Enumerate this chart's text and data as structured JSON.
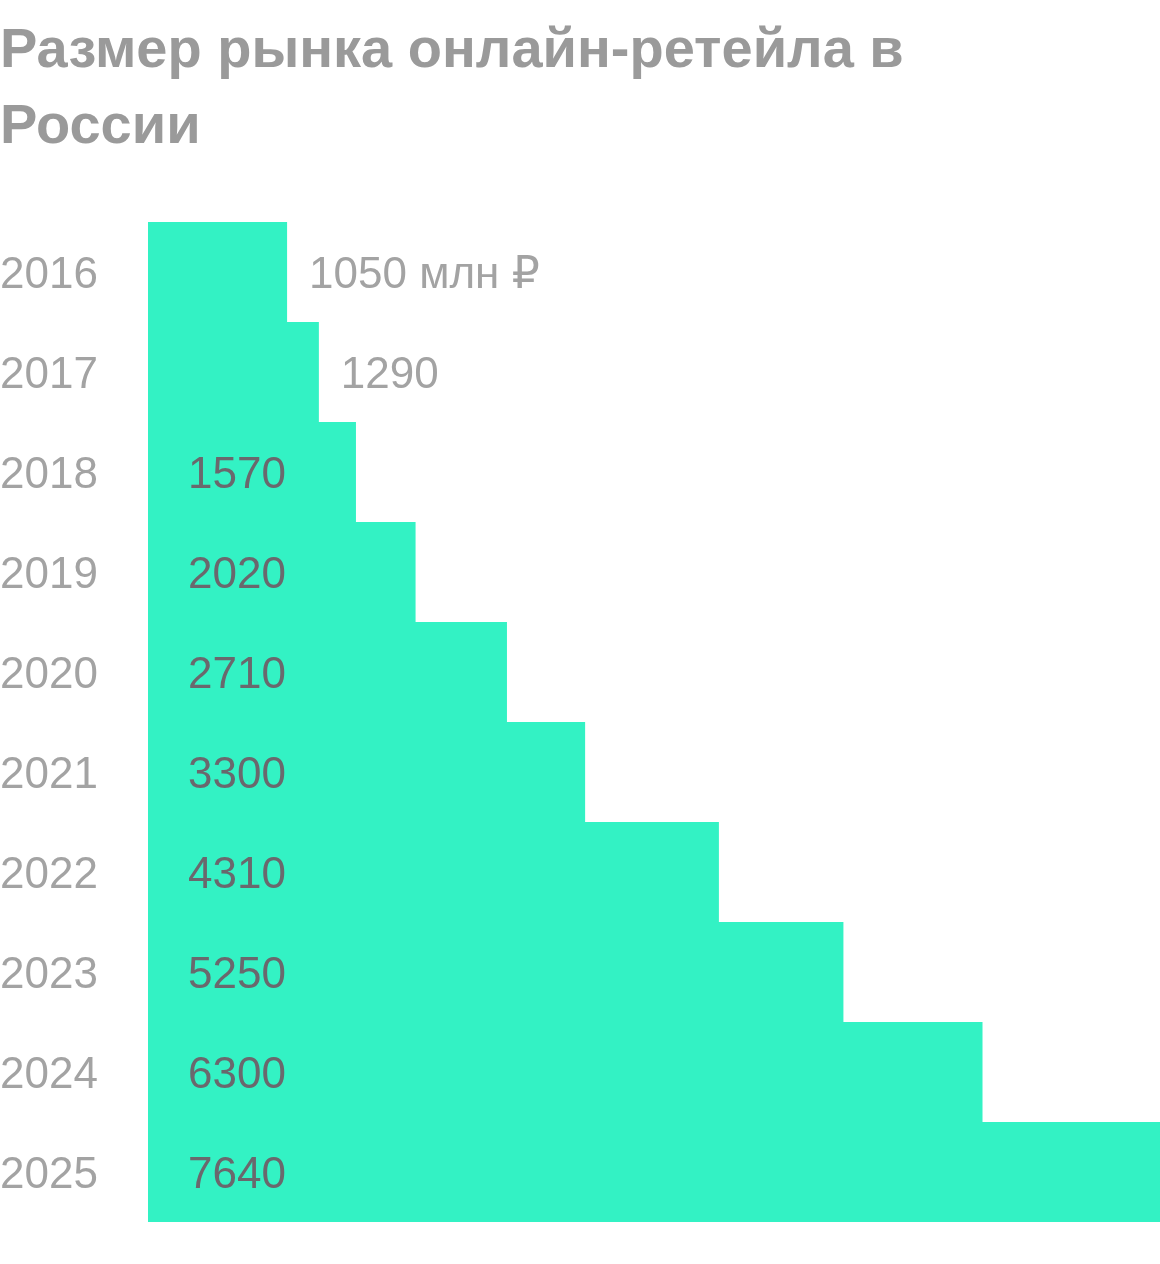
{
  "chart_data": {
    "type": "bar",
    "orientation": "horizontal",
    "title": "Размер рынка онлайн-ретейла в России",
    "categories": [
      "2016",
      "2017",
      "2018",
      "2019",
      "2020",
      "2021",
      "2022",
      "2023",
      "2024",
      "2025"
    ],
    "values": [
      1050,
      1290,
      1570,
      2020,
      2710,
      3300,
      4310,
      5250,
      6300,
      7640
    ],
    "value_labels": [
      "1050 млн ₽",
      "1290",
      "1570",
      "2020",
      "2710",
      "3300",
      "4310",
      "5250",
      "6300",
      "7640"
    ],
    "color": "#33f2c4"
  }
}
